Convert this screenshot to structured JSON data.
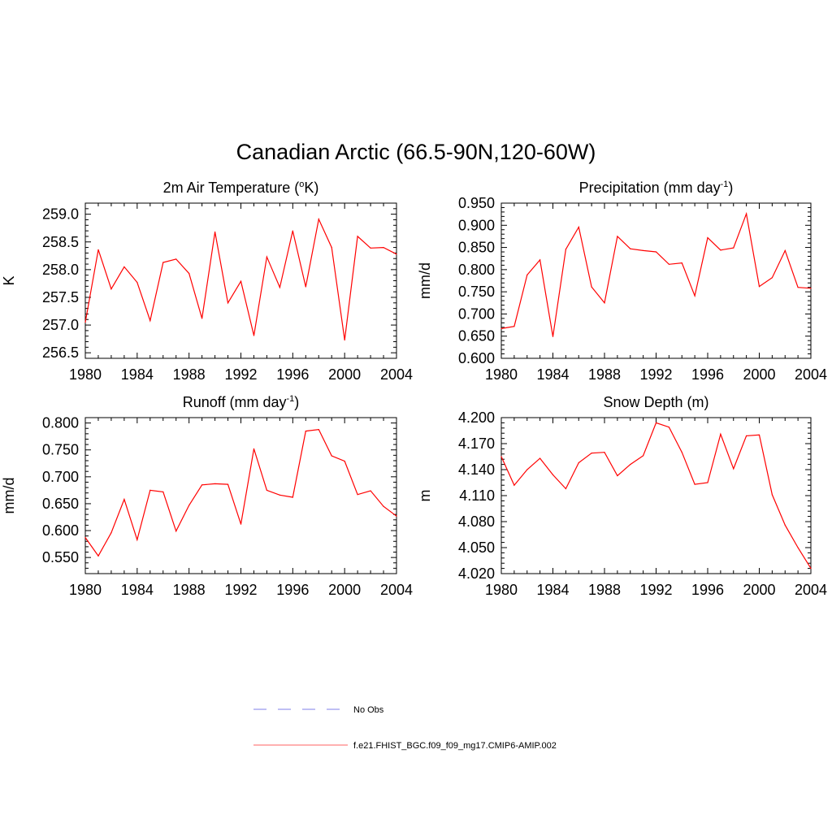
{
  "page": {
    "title": "Canadian Arctic (66.5-90N,120-60W)"
  },
  "legend": {
    "entries": [
      {
        "label": "No Obs",
        "color": "#9999ee",
        "dashed": true
      },
      {
        "label": "f.e21.FHIST_BGC.f09_f09_mg17.CMIP6-AMIP.002",
        "color": "#ff8080",
        "dashed": false
      }
    ]
  },
  "series_color": "#ff0000",
  "chart_data": [
    {
      "type": "line",
      "title": "2m Air Temperature (°K)",
      "title_parts": {
        "before": "2m Air Temperature (",
        "sup": "o",
        "after": "K)"
      },
      "ylabel": "K",
      "xlim": [
        1980,
        2004
      ],
      "ylim": [
        256.4,
        259.2
      ],
      "x_ticks": [
        "1980",
        "1984",
        "1988",
        "1992",
        "1996",
        "2000",
        "2004"
      ],
      "y_ticks": [
        "256.5",
        "257.0",
        "257.5",
        "258.0",
        "258.5",
        "259.0"
      ],
      "x": [
        1980,
        1981,
        1982,
        1983,
        1984,
        1985,
        1986,
        1987,
        1988,
        1989,
        1990,
        1991,
        1992,
        1993,
        1994,
        1995,
        1996,
        1997,
        1998,
        1999,
        2000,
        2001,
        2002,
        2003,
        2004
      ],
      "values": [
        257.05,
        258.36,
        257.65,
        258.05,
        257.77,
        257.08,
        258.13,
        258.19,
        257.93,
        257.12,
        258.68,
        257.4,
        257.79,
        256.81,
        258.23,
        257.68,
        258.7,
        257.69,
        258.91,
        258.4,
        256.73,
        258.6,
        258.39,
        258.4,
        258.28
      ]
    },
    {
      "type": "line",
      "title": "Precipitation (mm day-1)",
      "title_parts": {
        "before": "Precipitation (mm day",
        "sup": "-1",
        "after": ")"
      },
      "ylabel": "mm/d",
      "xlim": [
        1980,
        2004
      ],
      "ylim": [
        0.6,
        0.95
      ],
      "x_ticks": [
        "1980",
        "1984",
        "1988",
        "1992",
        "1996",
        "2000",
        "2004"
      ],
      "y_ticks": [
        "0.600",
        "0.650",
        "0.700",
        "0.750",
        "0.800",
        "0.850",
        "0.900",
        "0.950"
      ],
      "x": [
        1980,
        1981,
        1982,
        1983,
        1984,
        1985,
        1986,
        1987,
        1988,
        1989,
        1990,
        1991,
        1992,
        1993,
        1994,
        1995,
        1996,
        1997,
        1998,
        1999,
        2000,
        2001,
        2002,
        2003,
        2004
      ],
      "values": [
        0.667,
        0.672,
        0.788,
        0.822,
        0.649,
        0.846,
        0.896,
        0.761,
        0.725,
        0.875,
        0.847,
        0.843,
        0.84,
        0.812,
        0.815,
        0.741,
        0.872,
        0.844,
        0.849,
        0.926,
        0.762,
        0.782,
        0.843,
        0.76,
        0.758
      ]
    },
    {
      "type": "line",
      "title": "Runoff (mm day-1)",
      "title_parts": {
        "before": "Runoff (mm day",
        "sup": "-1",
        "after": ")"
      },
      "ylabel": "mm/d",
      "xlim": [
        1980,
        2004
      ],
      "ylim": [
        0.52,
        0.81
      ],
      "x_ticks": [
        "1980",
        "1984",
        "1988",
        "1992",
        "1996",
        "2000",
        "2004"
      ],
      "y_ticks": [
        "0.550",
        "0.600",
        "0.650",
        "0.700",
        "0.750",
        "0.800"
      ],
      "x": [
        1980,
        1981,
        1982,
        1983,
        1984,
        1985,
        1986,
        1987,
        1988,
        1989,
        1990,
        1991,
        1992,
        1993,
        1994,
        1995,
        1996,
        1997,
        1998,
        1999,
        2000,
        2001,
        2002,
        2003,
        2004
      ],
      "values": [
        0.587,
        0.553,
        0.596,
        0.658,
        0.583,
        0.675,
        0.672,
        0.599,
        0.647,
        0.685,
        0.687,
        0.686,
        0.612,
        0.752,
        0.675,
        0.666,
        0.662,
        0.785,
        0.788,
        0.739,
        0.729,
        0.667,
        0.674,
        0.645,
        0.627
      ]
    },
    {
      "type": "line",
      "title": "Snow Depth (m)",
      "title_parts": {
        "before": "Snow Depth (m)",
        "sup": "",
        "after": ""
      },
      "ylabel": "m",
      "xlim": [
        1980,
        2004
      ],
      "ylim": [
        4.02,
        4.2
      ],
      "x_ticks": [
        "1980",
        "1984",
        "1988",
        "1992",
        "1996",
        "2000",
        "2004"
      ],
      "y_ticks": [
        "4.020",
        "4.050",
        "4.080",
        "4.110",
        "4.140",
        "4.170",
        "4.200"
      ],
      "x": [
        1980,
        1981,
        1982,
        1983,
        1984,
        1985,
        1986,
        1987,
        1988,
        1989,
        1990,
        1991,
        1992,
        1993,
        1994,
        1995,
        1996,
        1997,
        1998,
        1999,
        2000,
        2001,
        2002,
        2003,
        2004
      ],
      "values": [
        4.155,
        4.122,
        4.14,
        4.153,
        4.134,
        4.118,
        4.148,
        4.159,
        4.16,
        4.133,
        4.146,
        4.156,
        4.194,
        4.189,
        4.16,
        4.123,
        4.125,
        4.181,
        4.141,
        4.179,
        4.18,
        4.111,
        4.076,
        4.05,
        4.026
      ]
    }
  ]
}
